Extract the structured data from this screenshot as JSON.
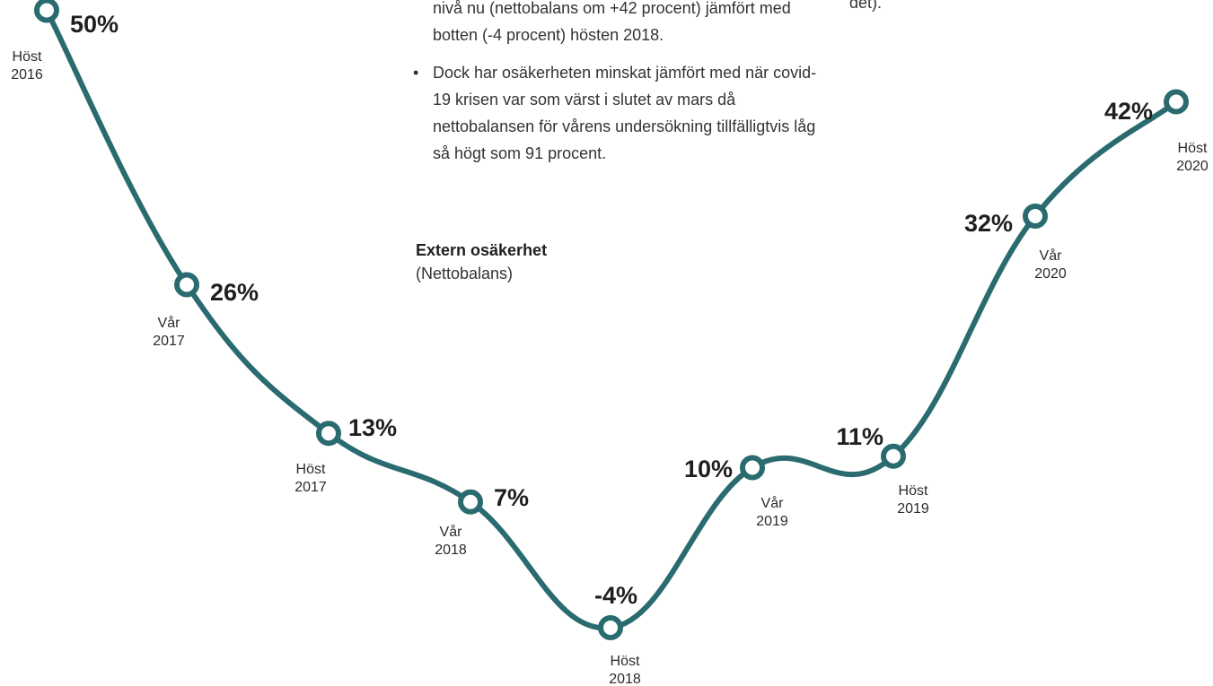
{
  "text": {
    "bullet1_cont": "nivå nu (nettobalans om +42 procent) jämfört med botten (-4 procent) hösten 2018.",
    "bullet2": "Dock har osäkerheten minskat jämfört med när covid-19 krisen var som värst i slutet av mars då nettobalansen för vårens undersökning tillfälligtvis låg så högt som 91 procent.",
    "side_note": "det)."
  },
  "chart_data": {
    "type": "line",
    "title": "Extern osäkerhet",
    "subtitle": "(Nettobalans)",
    "categories": [
      [
        "Höst",
        "2016"
      ],
      [
        "Vår",
        "2017"
      ],
      [
        "Höst",
        "2017"
      ],
      [
        "Vår",
        "2018"
      ],
      [
        "Höst",
        "2018"
      ],
      [
        "Vår",
        "2019"
      ],
      [
        "Höst",
        "2019"
      ],
      [
        "Vår",
        "2020"
      ],
      [
        "Höst",
        "2020"
      ]
    ],
    "values": [
      50,
      26,
      13,
      7,
      -4,
      10,
      11,
      32,
      42
    ],
    "data_labels": [
      "50%",
      "26%",
      "13%",
      "7%",
      "-4%",
      "10%",
      "11%",
      "32%",
      "42%"
    ],
    "line_color": "#2a6b70",
    "marker_fill": "#ffffff",
    "grid": false,
    "legend": "none"
  }
}
